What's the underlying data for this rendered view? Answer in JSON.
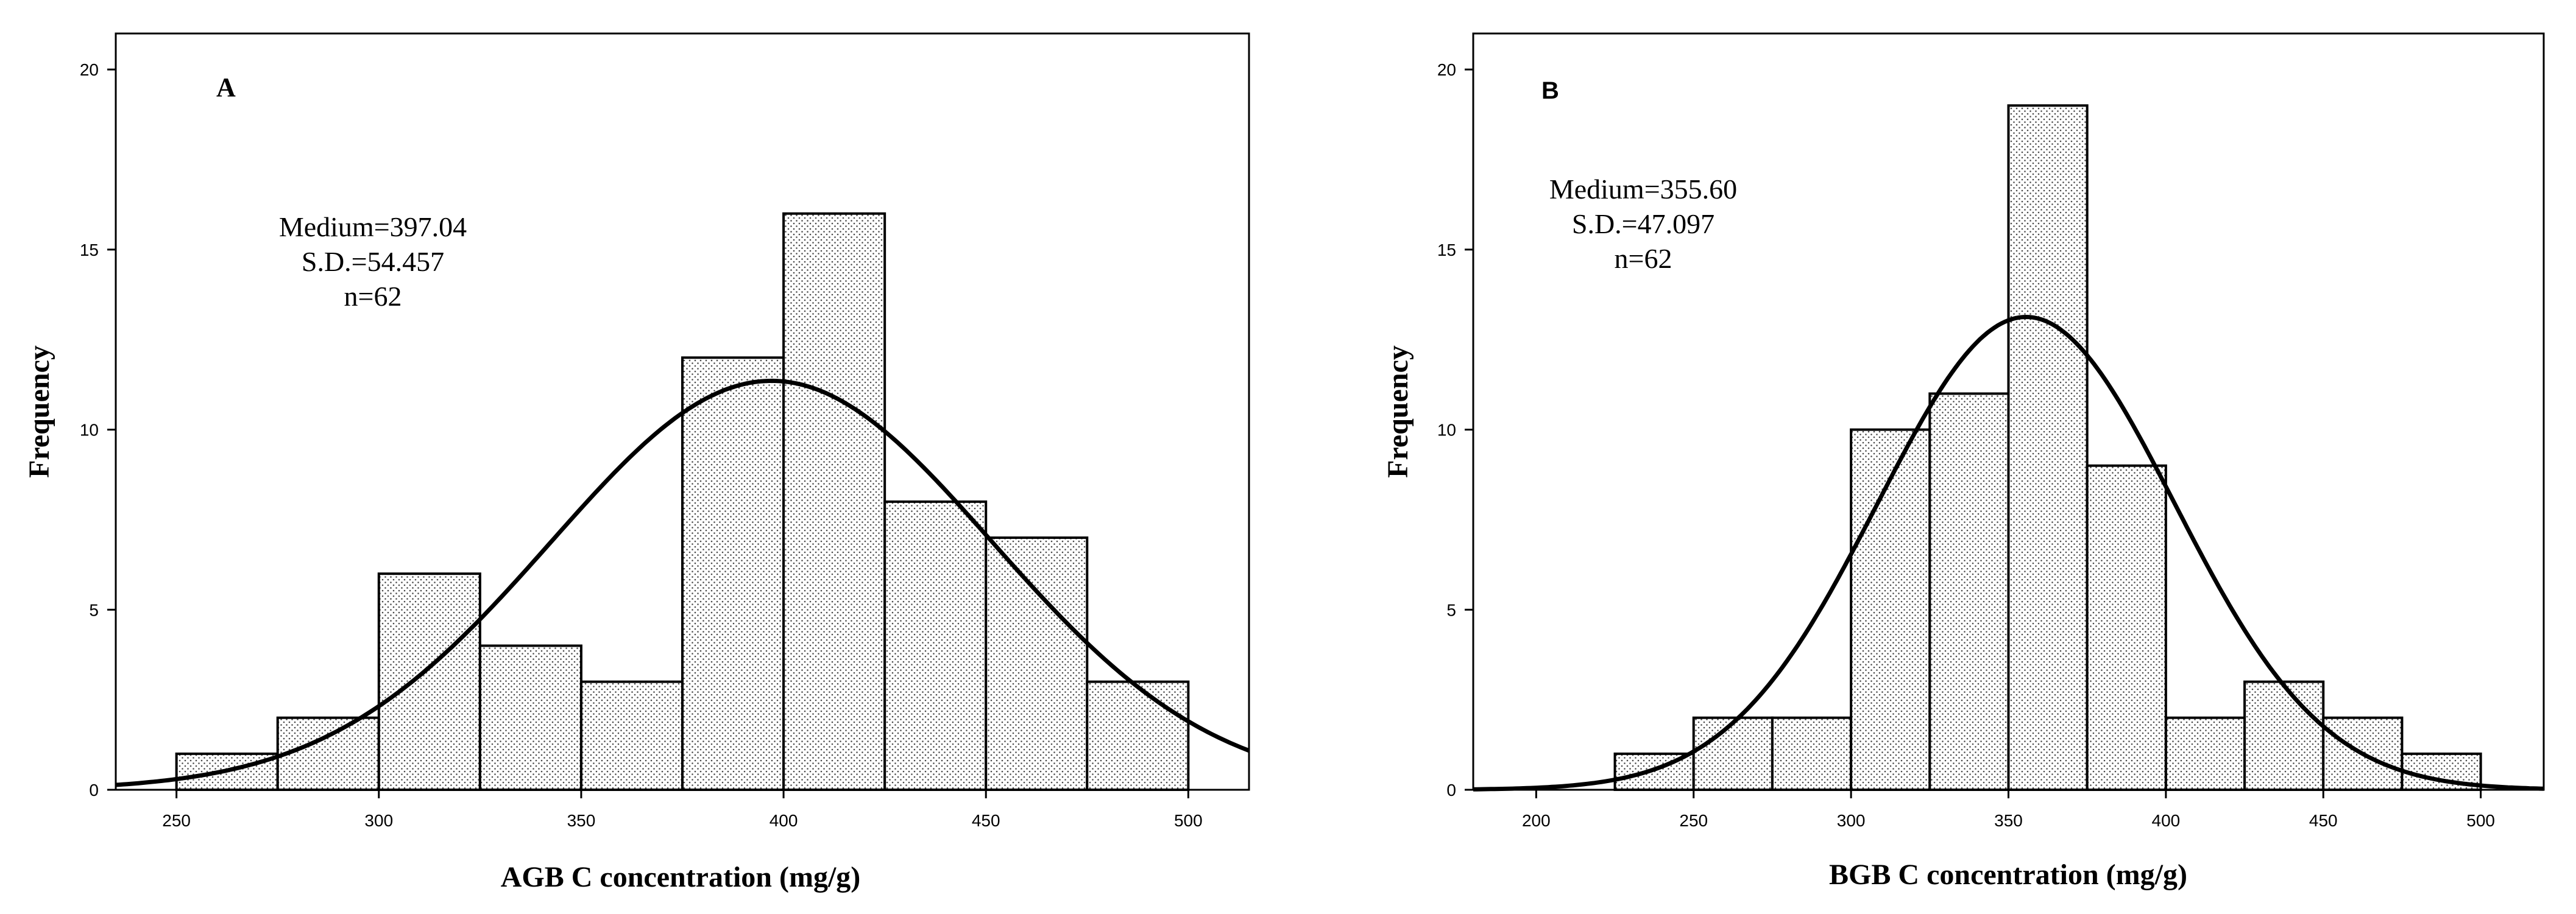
{
  "chart_data": [
    {
      "type": "bar",
      "panel": "A",
      "title": "",
      "xlabel": "AGB C concentration (mg/g)",
      "ylabel": "Frequency",
      "xlim": [
        235,
        515
      ],
      "ylim": [
        0,
        21
      ],
      "x_ticks": [
        250,
        300,
        350,
        400,
        450,
        500
      ],
      "y_ticks": [
        0,
        5,
        10,
        15,
        20
      ],
      "bin_width": 25,
      "bins": [
        {
          "start": 250,
          "end": 275,
          "count": 1
        },
        {
          "start": 275,
          "end": 300,
          "count": 2
        },
        {
          "start": 300,
          "end": 325,
          "count": 6
        },
        {
          "start": 325,
          "end": 350,
          "count": 4
        },
        {
          "start": 350,
          "end": 375,
          "count": 3
        },
        {
          "start": 375,
          "end": 400,
          "count": 12
        },
        {
          "start": 400,
          "end": 425,
          "count": 16
        },
        {
          "start": 425,
          "end": 450,
          "count": 8
        },
        {
          "start": 450,
          "end": 475,
          "count": 7
        },
        {
          "start": 475,
          "end": 500,
          "count": 3
        }
      ],
      "normal_curve": {
        "mean": 397.04,
        "sd": 54.457,
        "n": 62
      },
      "annotation_lines": [
        "Medium=397.04",
        "S.D.=54.457",
        "n=62"
      ],
      "grid": false
    },
    {
      "type": "bar",
      "panel": "B",
      "title": "",
      "xlabel": "BGB C concentration (mg/g)",
      "ylabel": "Frequency",
      "xlim": [
        180,
        520
      ],
      "ylim": [
        0,
        21
      ],
      "x_ticks": [
        200,
        250,
        300,
        350,
        400,
        450,
        500
      ],
      "y_ticks": [
        0,
        5,
        10,
        15,
        20
      ],
      "bin_width": 25,
      "bins": [
        {
          "start": 225,
          "end": 250,
          "count": 1
        },
        {
          "start": 250,
          "end": 275,
          "count": 2
        },
        {
          "start": 275,
          "end": 300,
          "count": 2
        },
        {
          "start": 300,
          "end": 325,
          "count": 10
        },
        {
          "start": 325,
          "end": 350,
          "count": 11
        },
        {
          "start": 350,
          "end": 375,
          "count": 19
        },
        {
          "start": 375,
          "end": 400,
          "count": 9
        },
        {
          "start": 400,
          "end": 425,
          "count": 2
        },
        {
          "start": 425,
          "end": 450,
          "count": 3
        },
        {
          "start": 450,
          "end": 475,
          "count": 2
        },
        {
          "start": 475,
          "end": 500,
          "count": 1
        }
      ],
      "normal_curve": {
        "mean": 355.6,
        "sd": 47.097,
        "n": 62
      },
      "annotation_lines": [
        "Medium=355.60",
        "S.D.=47.097",
        "n=62"
      ],
      "grid": false
    }
  ]
}
